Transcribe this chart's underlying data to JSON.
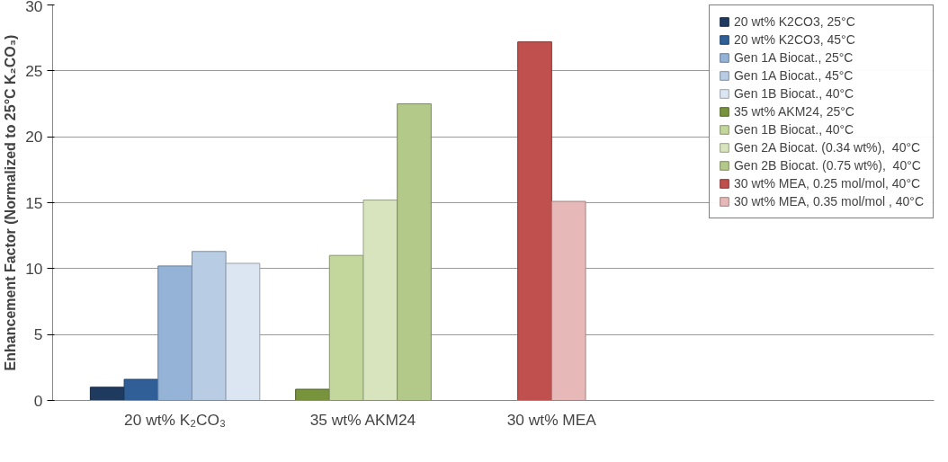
{
  "chart_data": {
    "type": "bar",
    "ylabel": "Enhancement Factor (Normalized to 25°C K₂CO₃)",
    "categories": [
      "20 wt% K₂CO₃",
      "35 wt% AKM24",
      "30 wt% MEA"
    ],
    "series": [
      {
        "name": "20 wt% K2CO3, 25°C",
        "color": "#1f3a5f",
        "values": [
          1.0,
          null,
          null
        ]
      },
      {
        "name": "20 wt% K2CO3, 45°C",
        "color": "#2f5f96",
        "values": [
          1.6,
          null,
          null
        ]
      },
      {
        "name": "Gen 1A Biocat., 25°C",
        "color": "#95b3d7",
        "values": [
          10.2,
          null,
          null
        ]
      },
      {
        "name": "Gen 1A Biocat., 45°C",
        "color": "#b8cce4",
        "values": [
          11.3,
          null,
          null
        ]
      },
      {
        "name": "Gen 1B Biocat., 40°C",
        "color": "#dce6f2",
        "values": [
          10.4,
          null,
          null
        ]
      },
      {
        "name": "35 wt% AKM24, 25°C",
        "color": "#77933c",
        "values": [
          null,
          0.85,
          null
        ]
      },
      {
        "name": "Gen 1B Biocat., 40°C",
        "color": "#c3d69b",
        "values": [
          null,
          11.0,
          null
        ]
      },
      {
        "name": "Gen 2A Biocat. (0.34 wt%),  40°C",
        "color": "#d7e4bd",
        "values": [
          null,
          15.2,
          null
        ]
      },
      {
        "name": "Gen 2B Biocat. (0.75 wt%),  40°C",
        "color": "#b3c98a",
        "values": [
          null,
          22.5,
          null
        ]
      },
      {
        "name": "30 wt% MEA, 0.25 mol/mol, 40°C",
        "color": "#c0504d",
        "values": [
          null,
          null,
          27.2
        ]
      },
      {
        "name": "30 wt% MEA, 0.35 mol/mol , 40°C",
        "color": "#e6b9b8",
        "values": [
          null,
          null,
          15.1
        ]
      }
    ],
    "ylim": [
      0,
      30
    ],
    "yticks": [
      0,
      5,
      10,
      15,
      20,
      25,
      30
    ],
    "grid": "y",
    "legend": "right"
  }
}
